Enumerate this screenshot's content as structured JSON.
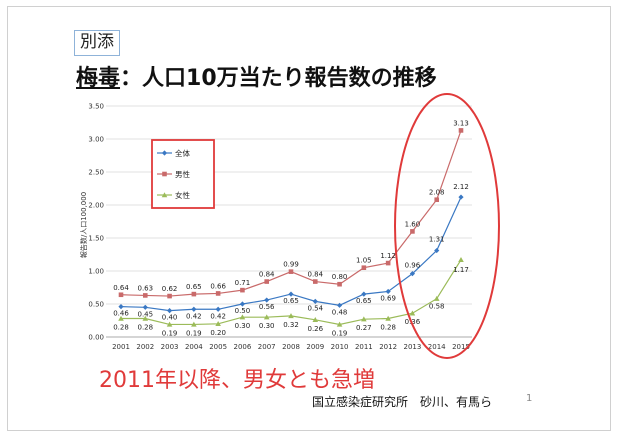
{
  "slide": {
    "tag": "別添",
    "title_emph": "梅毒",
    "title_rest": "：人口10万当たり報告数の推移",
    "headline": "2011年以降、男女とも急増",
    "credit": "国立感染症研究所　砂川、有馬ら",
    "page_number": "1"
  },
  "chart_data": {
    "type": "line",
    "x": [
      "2001",
      "2002",
      "2003",
      "2004",
      "2005",
      "2006",
      "2007",
      "2008",
      "2009",
      "2010",
      "2011",
      "2012",
      "2013",
      "2014",
      "2015"
    ],
    "ylabel": "報告数/人口100,000",
    "ylim": [
      0,
      3.5
    ],
    "yticks": [
      "0.00",
      "0.50",
      "1.00",
      "1.50",
      "2.00",
      "2.50",
      "3.00",
      "3.50"
    ],
    "grid": true,
    "legend_placement": "left",
    "series": [
      {
        "name": "全体",
        "color": "#3a78c3",
        "marker": "diamond",
        "values": [
          0.46,
          0.45,
          0.4,
          0.42,
          0.42,
          0.5,
          0.56,
          0.65,
          0.54,
          0.48,
          0.65,
          0.69,
          0.96,
          1.31,
          2.12
        ],
        "labels": [
          "0.46",
          "0.45",
          "0.40",
          "0.42",
          "0.42",
          "0.50",
          "0.56",
          "0.65",
          "0.54",
          "0.48",
          "0.65",
          "0.69",
          "0.96",
          "1.31",
          "2.12"
        ]
      },
      {
        "name": "男性",
        "color": "#c96a6a",
        "marker": "square",
        "values": [
          0.64,
          0.63,
          0.62,
          0.65,
          0.66,
          0.71,
          0.84,
          0.99,
          0.84,
          0.8,
          1.05,
          1.12,
          1.6,
          2.08,
          3.13
        ],
        "labels": [
          "0.64",
          "0.63",
          "0.62",
          "0.65",
          "0.66",
          "0.71",
          "0.84",
          "0.99",
          "0.84",
          "0.80",
          "1.05",
          "1.12",
          "1.60",
          "2.08",
          "3.13"
        ]
      },
      {
        "name": "女性",
        "color": "#9bbb59",
        "marker": "triangle",
        "values": [
          0.28,
          0.28,
          0.19,
          0.19,
          0.2,
          0.3,
          0.3,
          0.32,
          0.26,
          0.19,
          0.27,
          0.28,
          0.36,
          0.58,
          1.17
        ],
        "labels": [
          "0.28",
          "0.28",
          "0.19",
          "0.19",
          "0.20",
          "0.30",
          "0.30",
          "0.32",
          "0.26",
          "0.19",
          "0.27",
          "0.28",
          "0.36",
          "0.58",
          "1.17"
        ]
      }
    ],
    "highlight_color": "#e03a3a"
  }
}
